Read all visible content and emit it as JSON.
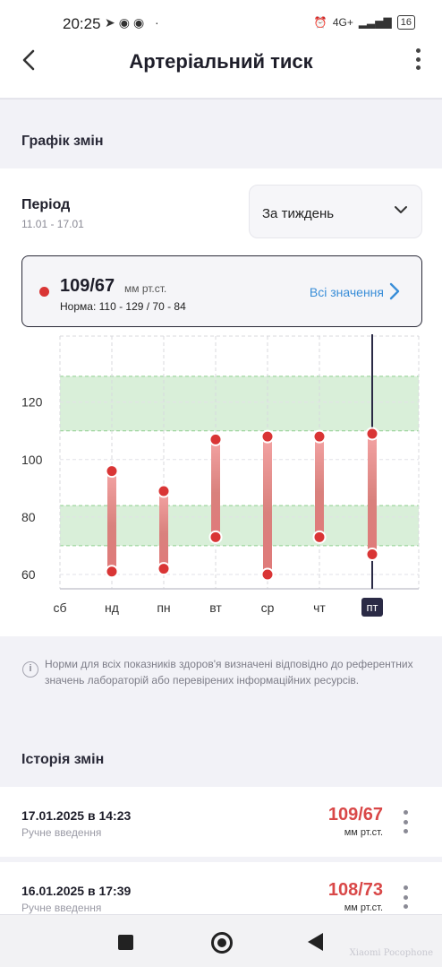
{
  "status_bar": {
    "time": "20:25",
    "network": "4G+",
    "battery": "16"
  },
  "header": {
    "title": "Артеріальний тиск"
  },
  "section": {
    "title": "Графік змін"
  },
  "period": {
    "label": "Період",
    "range": "11.01 - 17.01",
    "selected": "За тиждень"
  },
  "latest": {
    "value": "109/67",
    "unit": "мм рт.ст.",
    "norm": "Норма: 110 - 129 / 70 - 84",
    "all_values_link": "Всі значення"
  },
  "colors": {
    "accent_red": "#d93535",
    "link_blue": "#3a8ed8",
    "norm_band": "#d9efd9",
    "selected_day_bg": "#2a2a45"
  },
  "chart_data": {
    "type": "range-bar",
    "categories": [
      "сб",
      "нд",
      "пн",
      "вт",
      "ср",
      "чт",
      "пт"
    ],
    "selected_category": "пт",
    "systolic": [
      null,
      96,
      89,
      107,
      108,
      108,
      109
    ],
    "diastolic": [
      null,
      61,
      62,
      73,
      60,
      73,
      67
    ],
    "y_ticks": [
      60,
      80,
      100,
      120
    ],
    "ylim": [
      55,
      143
    ],
    "norm_bands": [
      {
        "from": 110,
        "to": 129
      },
      {
        "from": 70,
        "to": 84
      }
    ],
    "grid": true
  },
  "info": {
    "text": "Норми для всіх показників здоров'я визначені відповідно до референтних значень лабораторій або перевірених інформаційних ресурсів."
  },
  "history": {
    "title": "Історія змін",
    "items": [
      {
        "date": "17.01.2025 в 14:23",
        "type": "Ручне введення",
        "value": "109/67",
        "unit": "мм рт.ст."
      },
      {
        "date": "16.01.2025 в 17:39",
        "type": "Ручне введення",
        "value": "108/73",
        "unit": "мм рт.ст."
      }
    ]
  },
  "watermark": "Xiaomi Pocophone"
}
